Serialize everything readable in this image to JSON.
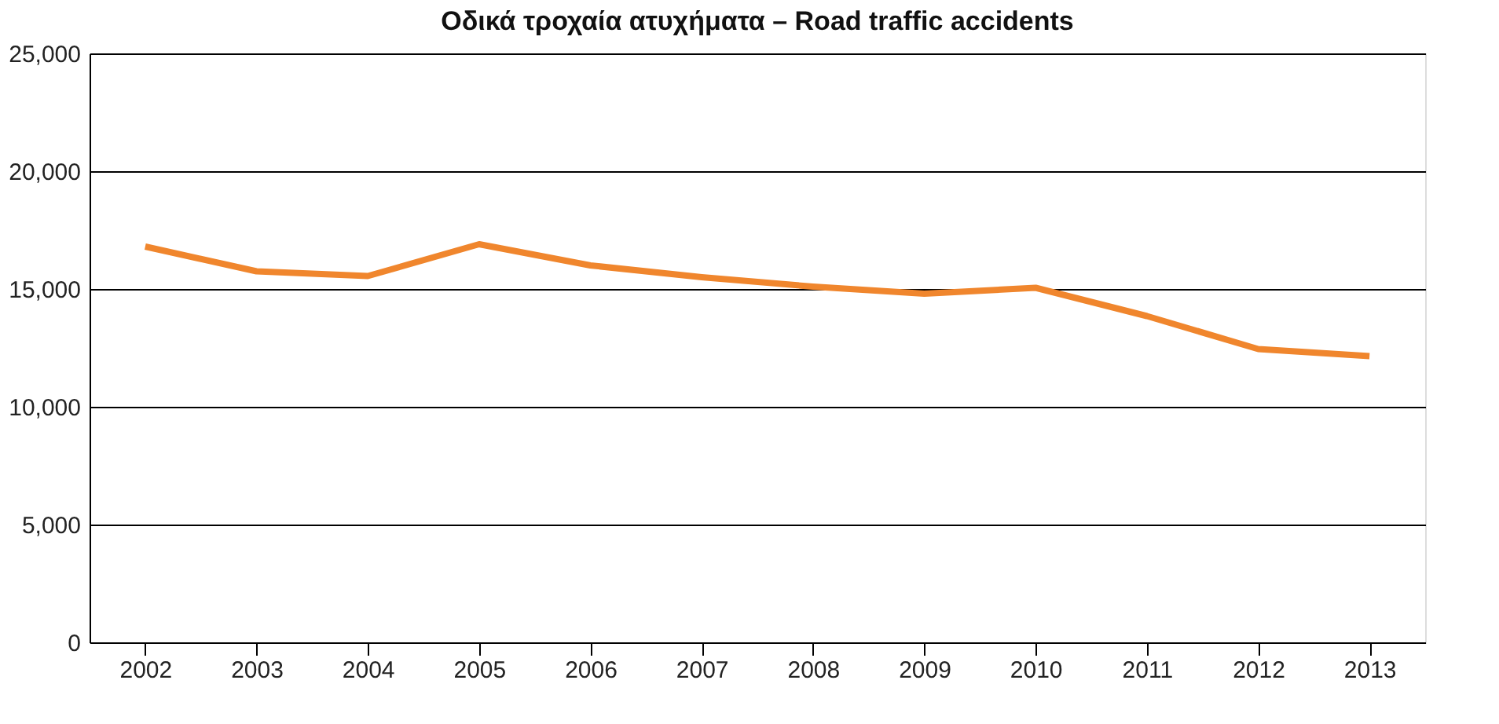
{
  "chart_data": {
    "type": "line",
    "title": "Οδικά τροχαία ατυχήματα – Road traffic accidents",
    "categories": [
      "2002",
      "2003",
      "2004",
      "2005",
      "2006",
      "2007",
      "2008",
      "2009",
      "2010",
      "2011",
      "2012",
      "2013"
    ],
    "series": [
      {
        "color": "#f0862d",
        "values": [
          16800,
          15750,
          15550,
          16900,
          16000,
          15500,
          15100,
          14800,
          15050,
          13850,
          12450,
          12150
        ]
      }
    ],
    "ylim": [
      0,
      25000
    ],
    "yticks": [
      0,
      {
        "value": 5000,
        "label": "5,000"
      },
      {
        "value": 10000,
        "label": "10,000"
      },
      {
        "value": 15000,
        "label": "15,000"
      },
      {
        "value": 20000,
        "label": "20,000"
      },
      {
        "value": 25000,
        "label": "25,000"
      }
    ],
    "grid": "y",
    "legend": false,
    "marker": "none",
    "line_style": "solid"
  }
}
